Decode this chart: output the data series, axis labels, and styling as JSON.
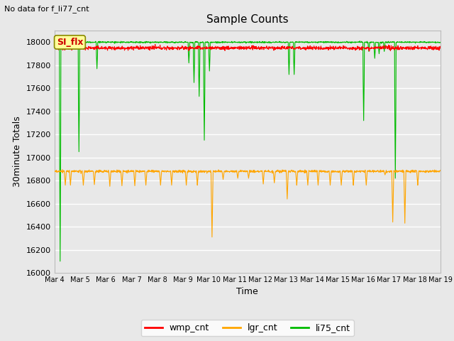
{
  "title": "Sample Counts",
  "xlabel": "Time",
  "ylabel": "30minute Totals",
  "top_left_text": "No data for f_li77_cnt",
  "annotation_text": "SI_flx",
  "ylim": [
    16000,
    18100
  ],
  "yticks": [
    16000,
    16200,
    16400,
    16600,
    16800,
    17000,
    17200,
    17400,
    17600,
    17800,
    18000
  ],
  "xlim": [
    4,
    19
  ],
  "xtick_positions": [
    4,
    5,
    6,
    7,
    8,
    9,
    10,
    11,
    12,
    13,
    14,
    15,
    16,
    17,
    18,
    19
  ],
  "xtick_labels": [
    "Mar 4",
    "Mar 5",
    "Mar 6",
    "Mar 7",
    "Mar 8",
    "Mar 9",
    "Mar 10",
    "Mar 11",
    "Mar 12",
    "Mar 13",
    "Mar 14",
    "Mar 15",
    "Mar 16",
    "Mar 17",
    "Mar 18",
    "Mar 19"
  ],
  "wmp_base": 17950,
  "wmp_noise": 8,
  "lgr_base": 16880,
  "lgr_noise": 5,
  "li75_base": 18000,
  "colors": {
    "wmp": "#ff0000",
    "lgr": "#ffa500",
    "li75": "#00bb00",
    "background": "#e8e8e8",
    "annotation_bg": "#ffff99",
    "annotation_border": "#888800",
    "grid": "#ffffff",
    "fig_bg": "#e8e8e8"
  },
  "legend_labels": [
    "wmp_cnt",
    "lgr_cnt",
    "li75_cnt"
  ],
  "lgr_spikes": [
    [
      4.42,
      16760
    ],
    [
      4.62,
      16760
    ],
    [
      5.12,
      16760
    ],
    [
      5.55,
      16765
    ],
    [
      6.15,
      16750
    ],
    [
      6.62,
      16755
    ],
    [
      7.12,
      16755
    ],
    [
      7.55,
      16760
    ],
    [
      8.12,
      16760
    ],
    [
      8.55,
      16760
    ],
    [
      9.12,
      16760
    ],
    [
      9.55,
      16760
    ],
    [
      10.12,
      16310
    ],
    [
      10.55,
      16810
    ],
    [
      11.12,
      16820
    ],
    [
      11.55,
      16820
    ],
    [
      12.12,
      16770
    ],
    [
      12.55,
      16780
    ],
    [
      13.05,
      16640
    ],
    [
      13.42,
      16760
    ],
    [
      13.85,
      16760
    ],
    [
      14.25,
      16760
    ],
    [
      14.72,
      16760
    ],
    [
      15.15,
      16760
    ],
    [
      15.62,
      16760
    ],
    [
      16.12,
      16760
    ],
    [
      16.85,
      16850
    ],
    [
      17.15,
      16440
    ],
    [
      17.62,
      16430
    ],
    [
      18.12,
      16760
    ]
  ],
  "li75_spikes": [
    [
      4.22,
      16100
    ],
    [
      4.95,
      17050
    ],
    [
      5.65,
      17770
    ],
    [
      9.22,
      17820
    ],
    [
      9.42,
      17650
    ],
    [
      9.62,
      17530
    ],
    [
      9.82,
      17150
    ],
    [
      10.02,
      17750
    ],
    [
      13.12,
      17720
    ],
    [
      13.32,
      17720
    ],
    [
      16.02,
      17320
    ],
    [
      16.22,
      17920
    ],
    [
      16.45,
      17860
    ],
    [
      16.62,
      17900
    ],
    [
      16.82,
      17920
    ],
    [
      17.25,
      16820
    ]
  ]
}
